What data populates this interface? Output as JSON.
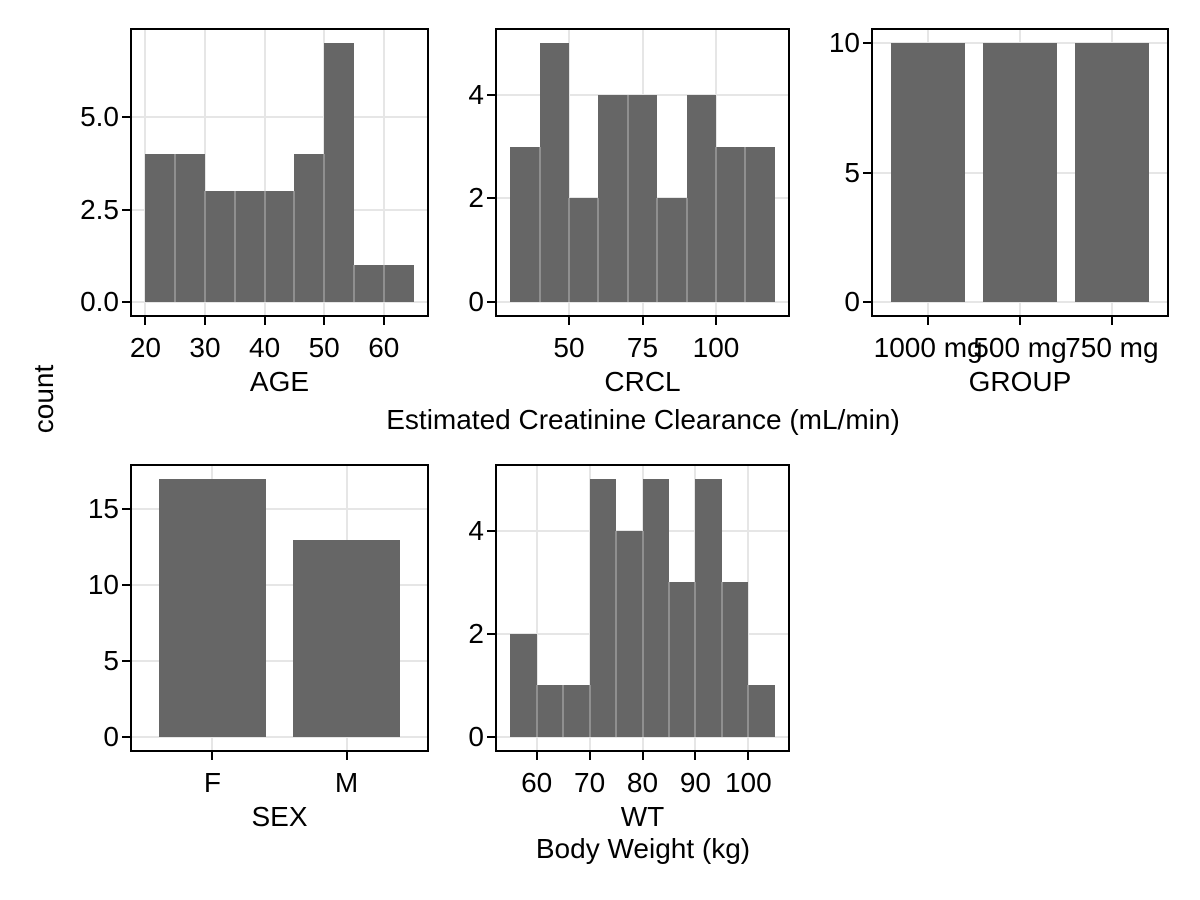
{
  "figure": {
    "y_axis_title": "count",
    "row1_caption": "Estimated Creatinine Clearance (mL/min)",
    "row2_caption": "Body Weight (kg)",
    "colors": {
      "bar_fill": "#666666",
      "bar_separator": "#8f8f8f",
      "gridline": "#e6e6e6",
      "panel_border": "#000000",
      "tick": "#000000",
      "text": "#000000",
      "background": "#ffffff"
    }
  },
  "chart_data": [
    {
      "id": "age",
      "type": "histogram",
      "xlabel": "AGE",
      "ylabel": "count",
      "bin_edges": [
        20,
        25,
        30,
        35,
        40,
        45,
        50,
        55,
        60,
        65
      ],
      "counts": [
        4,
        4,
        3,
        3,
        3,
        4,
        7,
        1,
        1
      ],
      "x_tick_values": [
        20,
        30,
        40,
        50,
        60
      ],
      "x_tick_labels": [
        "20",
        "30",
        "40",
        "50",
        "60"
      ],
      "y_tick_values": [
        0,
        2.5,
        5
      ],
      "y_tick_labels": [
        "0.0",
        "2.5",
        "5.0"
      ],
      "x_domain": [
        17.75,
        67.25
      ],
      "y_domain": [
        -0.35,
        7.35
      ],
      "grid": true
    },
    {
      "id": "crcl",
      "type": "histogram",
      "xlabel": "CRCL",
      "ylabel": "count",
      "bin_edges": [
        30,
        40,
        50,
        60,
        70,
        80,
        90,
        100,
        110,
        120
      ],
      "counts": [
        3,
        5,
        2,
        4,
        4,
        2,
        4,
        3,
        3
      ],
      "x_tick_values": [
        50,
        75,
        100
      ],
      "x_tick_labels": [
        "50",
        "75",
        "100"
      ],
      "y_tick_values": [
        0,
        2,
        4
      ],
      "y_tick_labels": [
        "0",
        "2",
        "4"
      ],
      "x_domain": [
        25.5,
        124.5
      ],
      "y_domain": [
        -0.25,
        5.25
      ],
      "grid": true
    },
    {
      "id": "group",
      "type": "bar",
      "xlabel": "GROUP",
      "ylabel": "count",
      "categories": [
        "1000 mg",
        "500 mg",
        "750 mg"
      ],
      "values": [
        10,
        10,
        10
      ],
      "x_tick_labels": [
        "1000 mg",
        "500 mg",
        "750 mg"
      ],
      "y_tick_values": [
        0,
        5,
        10
      ],
      "y_tick_labels": [
        "0",
        "5",
        "10"
      ],
      "y_domain": [
        -0.5,
        10.5
      ],
      "bar_width": 0.8,
      "grid": true
    },
    {
      "id": "sex",
      "type": "bar",
      "xlabel": "SEX",
      "ylabel": "count",
      "categories": [
        "F",
        "M"
      ],
      "values": [
        17,
        13
      ],
      "x_tick_labels": [
        "F",
        "M"
      ],
      "y_tick_values": [
        0,
        5,
        10,
        15
      ],
      "y_tick_labels": [
        "0",
        "5",
        "10",
        "15"
      ],
      "y_domain": [
        -0.85,
        17.85
      ],
      "bar_width": 0.8,
      "grid": true
    },
    {
      "id": "wt",
      "type": "histogram",
      "xlabel": "WT",
      "ylabel": "count",
      "bin_edges": [
        55,
        60,
        65,
        70,
        75,
        80,
        85,
        90,
        95,
        100,
        105
      ],
      "counts": [
        2,
        1,
        1,
        5,
        4,
        5,
        3,
        5,
        3,
        1
      ],
      "x_tick_values": [
        60,
        70,
        80,
        90,
        100
      ],
      "x_tick_labels": [
        "60",
        "70",
        "80",
        "90",
        "100"
      ],
      "y_tick_values": [
        0,
        2,
        4
      ],
      "y_tick_labels": [
        "0",
        "2",
        "4"
      ],
      "x_domain": [
        52.5,
        107.5
      ],
      "y_domain": [
        -0.25,
        5.25
      ],
      "grid": true
    }
  ]
}
